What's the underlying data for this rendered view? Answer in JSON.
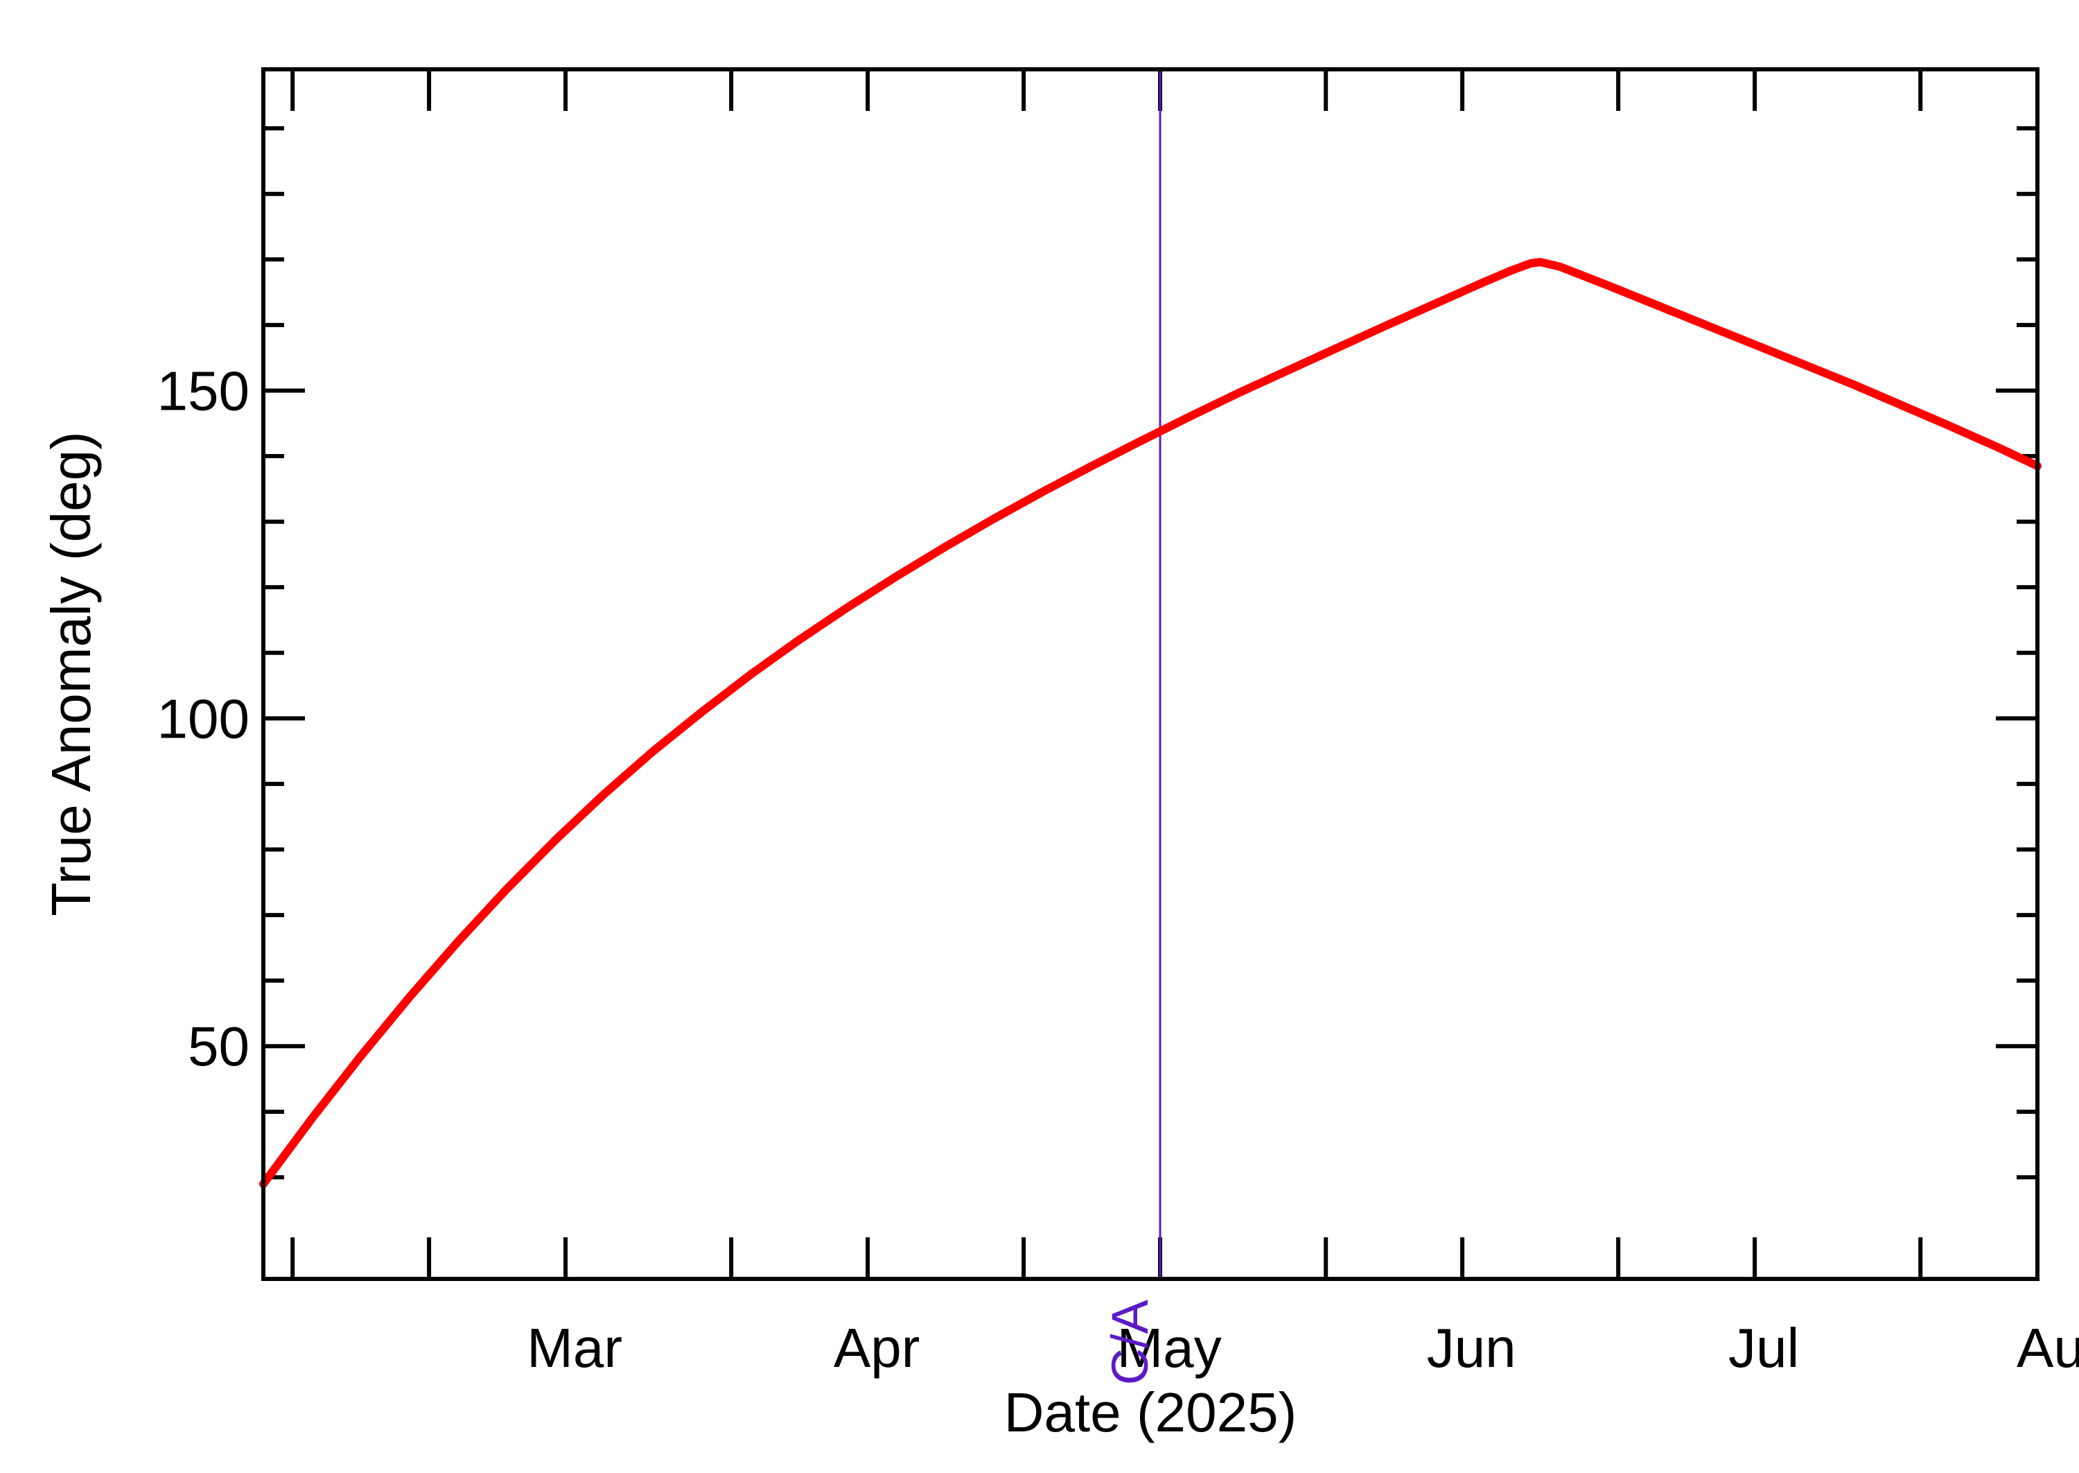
{
  "chart_data": {
    "type": "line",
    "title": "",
    "xlabel": "Date (2025)",
    "ylabel": "True Anomaly (deg)",
    "x_is_date": true,
    "xlim": [
      "2025-02-12",
      "2025-08-13"
    ],
    "ylim": [
      14.5,
      199
    ],
    "x_ticks": [
      {
        "date": "2025-02-15",
        "label": ""
      },
      {
        "date": "2025-03-01",
        "label": "Mar"
      },
      {
        "date": "2025-03-15",
        "label": ""
      },
      {
        "date": "2025-04-01",
        "label": "Apr"
      },
      {
        "date": "2025-04-15",
        "label": ""
      },
      {
        "date": "2025-05-01",
        "label": "May"
      },
      {
        "date": "2025-05-15",
        "label": ""
      },
      {
        "date": "2025-06-01",
        "label": "Jun"
      },
      {
        "date": "2025-06-15",
        "label": ""
      },
      {
        "date": "2025-07-01",
        "label": "Jul"
      },
      {
        "date": "2025-07-15",
        "label": ""
      },
      {
        "date": "2025-08-01",
        "label": "Aug"
      }
    ],
    "y_major_ticks": [
      50,
      100,
      150
    ],
    "y_minor_ticks": [
      30,
      40,
      60,
      70,
      80,
      90,
      110,
      120,
      130,
      140,
      160,
      170,
      180,
      190
    ],
    "grid": false,
    "series": [
      {
        "color": "#ff0000",
        "x": [
          "2025-02-12",
          "2025-02-17",
          "2025-02-22",
          "2025-02-27",
          "2025-03-04",
          "2025-03-09",
          "2025-03-14",
          "2025-03-19",
          "2025-03-24",
          "2025-03-29",
          "2025-04-03",
          "2025-04-08",
          "2025-04-13",
          "2025-04-18",
          "2025-04-23",
          "2025-04-28",
          "2025-05-03",
          "2025-05-08",
          "2025-05-13",
          "2025-05-18",
          "2025-05-23",
          "2025-05-28",
          "2025-06-02",
          "2025-06-07",
          "2025-06-12",
          "2025-06-17",
          "2025-06-20",
          "2025-06-22",
          "2025-06-23",
          "2025-06-25",
          "2025-06-30",
          "2025-07-05",
          "2025-07-10",
          "2025-07-15",
          "2025-07-20",
          "2025-07-25",
          "2025-07-30",
          "2025-08-04",
          "2025-08-09",
          "2025-08-13"
        ],
        "y": [
          29,
          39,
          48.5,
          57.5,
          66,
          74,
          81.5,
          88.5,
          95,
          101,
          106.7,
          112,
          117,
          121.7,
          126.2,
          130.5,
          134.6,
          138.5,
          142.3,
          146,
          149.6,
          153,
          156.4,
          159.8,
          163.1,
          166.4,
          168.3,
          169.4,
          169.6,
          168.9,
          166,
          163,
          160,
          157,
          154,
          151,
          147.8,
          144.6,
          141.3,
          138.5
        ]
      }
    ],
    "markers": [
      {
        "date": "2025-05-15",
        "label": "C/A",
        "color": "#5a1ac7"
      }
    ]
  }
}
